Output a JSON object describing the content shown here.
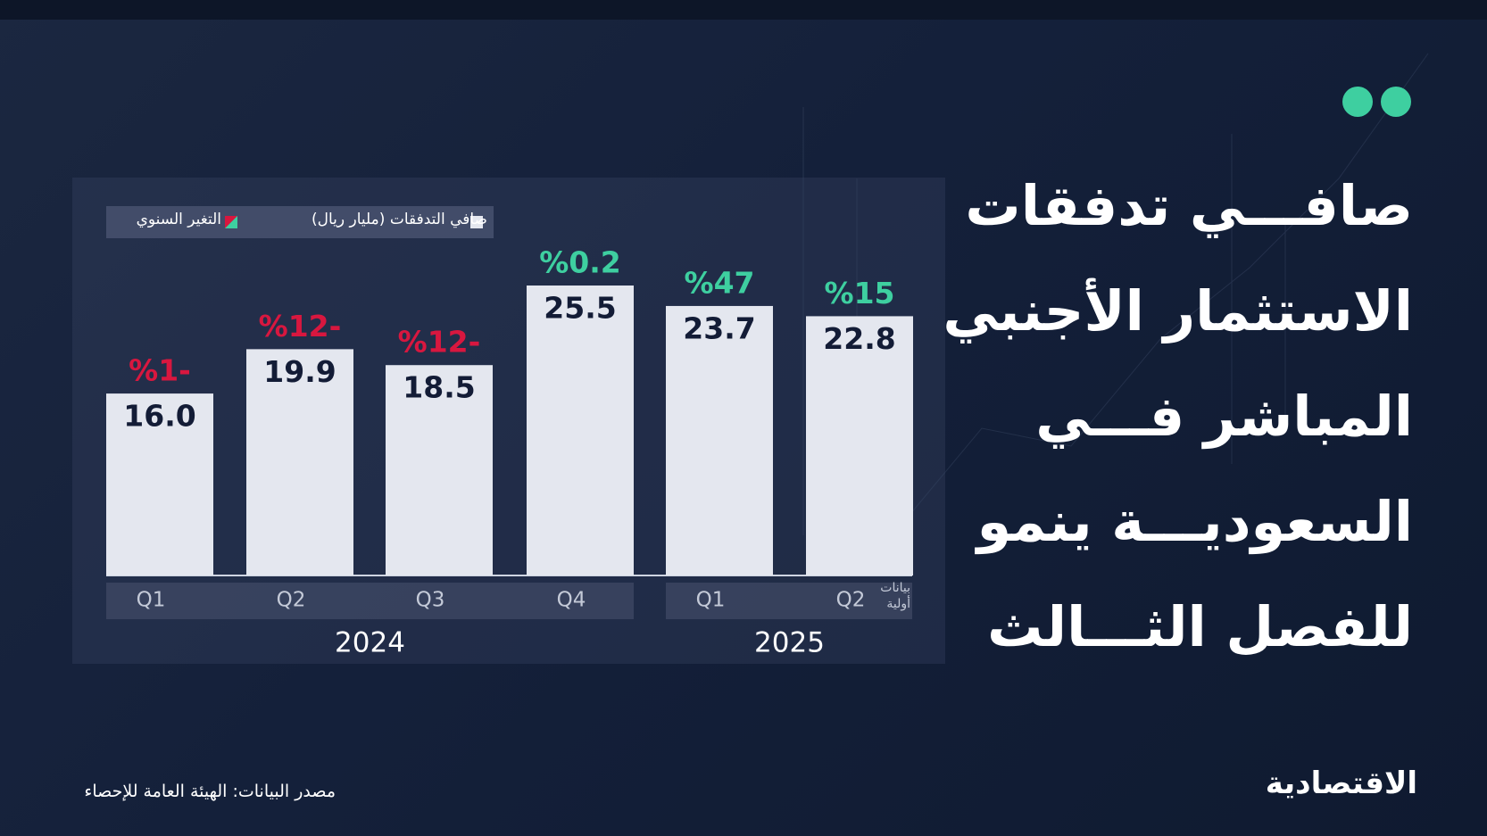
{
  "chart_data": {
    "type": "bar",
    "title_lines": [
      "صافـــي تدفقات",
      "الاستثمار الأجنبي",
      "المباشر فـــي",
      "السعوديـــة ينمو",
      "للفصل الثـــالث"
    ],
    "groups": [
      {
        "label": "2024",
        "categories": [
          "Q1",
          "Q2",
          "Q3",
          "Q4"
        ]
      },
      {
        "label": "2025",
        "categories": [
          "Q1",
          "Q2"
        ]
      }
    ],
    "note": "بيانات أولية",
    "series": [
      {
        "name": "صافي التدفقات (مليار ريال)",
        "color": "#e4e7ef",
        "values": [
          16.0,
          19.9,
          18.5,
          25.5,
          23.7,
          22.8
        ],
        "value_labels": [
          "16.0",
          "19.9",
          "18.5",
          "25.5",
          "23.7",
          "22.8"
        ]
      }
    ],
    "change": {
      "name": "التغير السنوي",
      "up_color": "#3ecfa0",
      "down_color": "#d8173f",
      "values": [
        -1,
        -12,
        -12,
        0.2,
        47,
        15
      ],
      "value_labels": [
        "%1-",
        "%12-",
        "%12-",
        "%0.2",
        "%47",
        "%15"
      ]
    },
    "source": "مصدر البيانات: الهيئة العامة للإحصاء",
    "brand": "الاقتصادية"
  }
}
